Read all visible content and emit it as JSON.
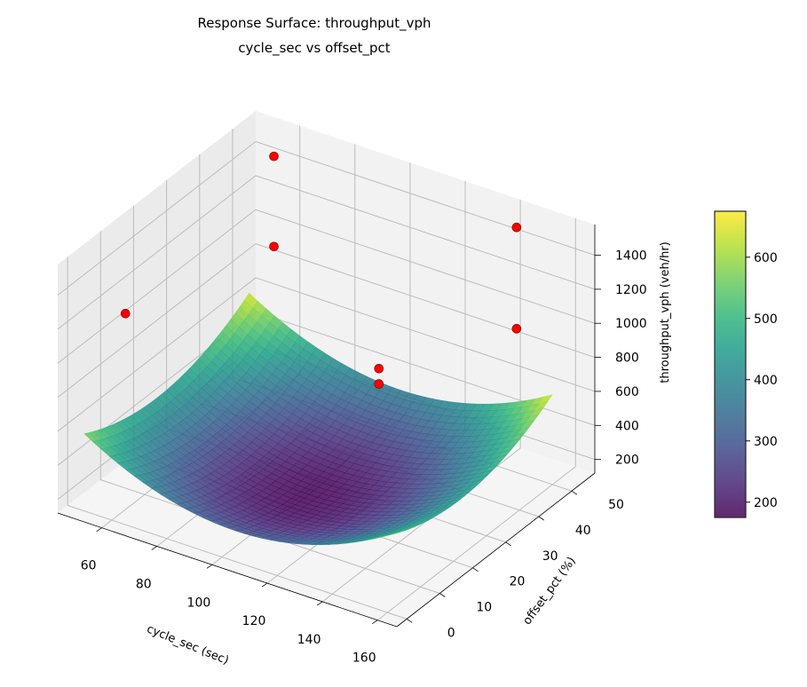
{
  "chart_data": {
    "type": "surface3d",
    "title": "Response Surface: throughput_vph",
    "subtitle": "cycle_sec vs offset_pct",
    "xlabel": "cycle_sec (sec)",
    "ylabel": "offset_pct (%)",
    "zlabel": "throughput_vph (veh/hr)",
    "xlim": [
      44,
      167
    ],
    "ylim": [
      -3,
      57
    ],
    "zlim": [
      120,
      1580
    ],
    "xticks": [
      60,
      80,
      100,
      120,
      140,
      160
    ],
    "yticks": [
      0,
      10,
      20,
      30,
      40,
      50
    ],
    "zticks": [
      200,
      400,
      600,
      800,
      1000,
      1200,
      1400
    ],
    "surface": {
      "x_range": [
        50,
        160
      ],
      "y_range": [
        0,
        50
      ],
      "model": "bowl",
      "min_value": 180,
      "min_at": [
        105,
        22
      ],
      "colormap": "viridis",
      "alpha": 0.85
    },
    "colorbar": {
      "ticks": [
        200,
        300,
        400,
        500,
        600
      ],
      "range": [
        175,
        675
      ]
    },
    "points": [
      {
        "x": 59,
        "y": 50,
        "z": 1500
      },
      {
        "x": 59,
        "y": 50,
        "z": 970
      },
      {
        "x": 53,
        "y": 10,
        "z": 1145
      },
      {
        "x": 147,
        "y": 50,
        "z": 1560
      },
      {
        "x": 147,
        "y": 50,
        "z": 965
      },
      {
        "x": 121,
        "y": 30,
        "z": 890
      },
      {
        "x": 121,
        "y": 30,
        "z": 800
      }
    ],
    "point_color": "#ff0000",
    "grid": true
  }
}
